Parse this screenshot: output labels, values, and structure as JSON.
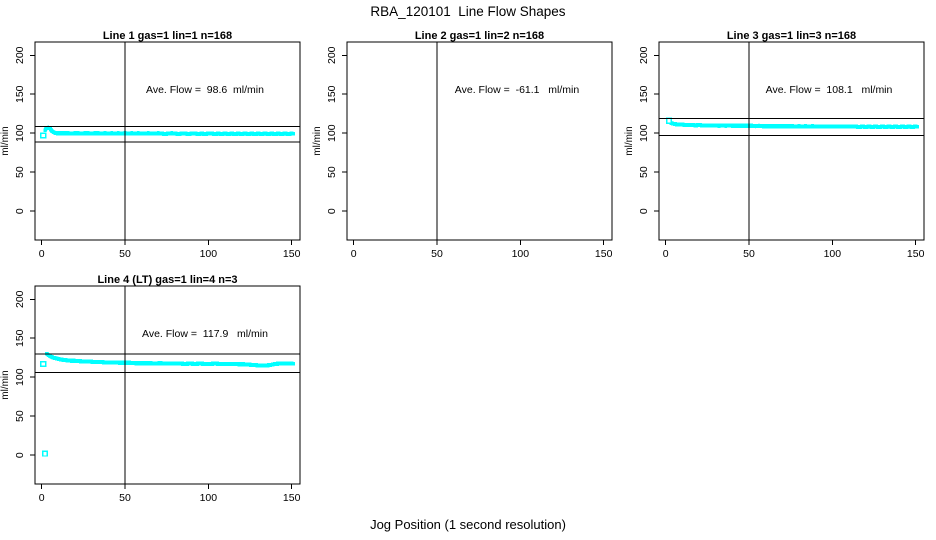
{
  "figure": {
    "title": "RBA_120101  Line Flow Shapes",
    "xlabel": "Jog Position (1 second resolution)",
    "ylabel": "ml/min",
    "colors": {
      "points": "#00FFFF",
      "axis": "#000000",
      "background": "#FFFFFF"
    }
  },
  "chart_data": {
    "type": "scatter",
    "title": "RBA_120101  Line Flow Shapes",
    "xlabel": "Jog Position (1 second resolution)",
    "ylabel": "ml/min",
    "xlim": [
      -4,
      155
    ],
    "ylim": [
      -37,
      217
    ],
    "xticks": [
      0,
      50,
      100,
      150
    ],
    "yticks": [
      0,
      50,
      100,
      150,
      200
    ],
    "grid": false,
    "vline_x": 50,
    "point_color": "#00FFFF",
    "panels": [
      {
        "id": "line-1",
        "title": "Line 1 gas=1 lin=1 n=168",
        "annotation": "Ave. Flow =  98.6  ml/min",
        "ave_flow_ml_min": 98.6,
        "n": 168,
        "hlines": [
          88.7,
          108.5
        ],
        "open_points": [
          [
            1,
            97
          ]
        ],
        "points": [
          [
            2,
            104
          ],
          [
            3,
            106.5
          ],
          [
            4,
            107
          ],
          [
            5,
            106.5
          ],
          [
            6,
            103
          ],
          [
            7,
            101.5
          ],
          [
            8,
            100.5
          ],
          [
            9,
            100
          ],
          [
            10,
            100
          ],
          [
            12,
            100
          ],
          [
            14,
            100
          ],
          [
            16,
            100
          ],
          [
            18,
            99.5
          ],
          [
            20,
            100
          ],
          [
            22,
            100
          ],
          [
            24,
            99.5
          ],
          [
            26,
            100
          ],
          [
            28,
            100
          ],
          [
            30,
            99.5
          ],
          [
            32,
            100
          ],
          [
            34,
            100
          ],
          [
            36,
            99.5
          ],
          [
            38,
            100
          ],
          [
            40,
            99.5
          ],
          [
            42,
            100
          ],
          [
            44,
            99.5
          ],
          [
            46,
            100
          ],
          [
            48,
            99.5
          ],
          [
            50,
            100
          ],
          [
            52,
            99.5
          ],
          [
            54,
            100
          ],
          [
            56,
            99.5
          ],
          [
            58,
            100
          ],
          [
            60,
            99.5
          ],
          [
            62,
            99.5
          ],
          [
            64,
            100
          ],
          [
            66,
            99.5
          ],
          [
            68,
            99.5
          ],
          [
            70,
            100
          ],
          [
            72,
            99.5
          ],
          [
            74,
            99
          ],
          [
            76,
            99.5
          ],
          [
            78,
            100
          ],
          [
            80,
            99.5
          ],
          [
            82,
            99
          ],
          [
            84,
            99.5
          ],
          [
            86,
            99.5
          ],
          [
            88,
            99
          ],
          [
            90,
            99.5
          ],
          [
            92,
            99.5
          ],
          [
            94,
            99
          ],
          [
            96,
            99.5
          ],
          [
            98,
            99
          ],
          [
            100,
            99.5
          ],
          [
            102,
            99.5
          ],
          [
            104,
            99
          ],
          [
            106,
            99.5
          ],
          [
            108,
            99
          ],
          [
            110,
            99.5
          ],
          [
            112,
            99
          ],
          [
            114,
            99.5
          ],
          [
            116,
            99
          ],
          [
            118,
            99.5
          ],
          [
            120,
            99
          ],
          [
            122,
            99.5
          ],
          [
            124,
            99
          ],
          [
            126,
            99.5
          ],
          [
            128,
            99
          ],
          [
            130,
            99.5
          ],
          [
            132,
            99
          ],
          [
            134,
            99.5
          ],
          [
            136,
            99
          ],
          [
            138,
            99.5
          ],
          [
            140,
            99
          ],
          [
            142,
            99.5
          ],
          [
            144,
            99
          ],
          [
            146,
            99.5
          ],
          [
            148,
            99
          ],
          [
            150,
            99.5
          ],
          [
            151,
            99.5
          ]
        ]
      },
      {
        "id": "line-2",
        "title": "Line 2 gas=1 lin=2 n=168",
        "annotation": "Ave. Flow =  -61.1   ml/min",
        "ave_flow_ml_min": -61.1,
        "n": 168,
        "hlines": [],
        "open_points": [],
        "points": []
      },
      {
        "id": "line-3",
        "title": "Line 3 gas=1 lin=3 n=168",
        "annotation": "Ave. Flow =  108.1   ml/min",
        "ave_flow_ml_min": 108.1,
        "n": 168,
        "hlines": [
          97.3,
          118.9
        ],
        "open_points": [
          [
            2,
            116
          ]
        ],
        "points": [
          [
            2,
            115.5
          ],
          [
            3,
            113.5
          ],
          [
            4,
            112.5
          ],
          [
            5,
            112
          ],
          [
            6,
            111.5
          ],
          [
            8,
            111
          ],
          [
            10,
            111
          ],
          [
            12,
            110.5
          ],
          [
            14,
            110.5
          ],
          [
            16,
            110.5
          ],
          [
            18,
            110
          ],
          [
            20,
            110.5
          ],
          [
            22,
            110
          ],
          [
            24,
            110
          ],
          [
            26,
            110
          ],
          [
            28,
            110
          ],
          [
            30,
            110
          ],
          [
            32,
            109.5
          ],
          [
            34,
            110
          ],
          [
            36,
            109.5
          ],
          [
            38,
            110
          ],
          [
            40,
            109.5
          ],
          [
            42,
            109.5
          ],
          [
            44,
            109.5
          ],
          [
            46,
            109.5
          ],
          [
            48,
            109.5
          ],
          [
            50,
            109.5
          ],
          [
            52,
            109.5
          ],
          [
            54,
            109
          ],
          [
            56,
            109.5
          ],
          [
            58,
            109
          ],
          [
            60,
            109
          ],
          [
            62,
            109
          ],
          [
            64,
            109
          ],
          [
            66,
            109
          ],
          [
            68,
            109
          ],
          [
            70,
            109
          ],
          [
            72,
            109
          ],
          [
            74,
            109
          ],
          [
            76,
            109
          ],
          [
            78,
            108.5
          ],
          [
            80,
            109
          ],
          [
            82,
            108.5
          ],
          [
            84,
            109
          ],
          [
            86,
            108.5
          ],
          [
            88,
            109
          ],
          [
            90,
            108.5
          ],
          [
            92,
            108.5
          ],
          [
            94,
            108.5
          ],
          [
            96,
            108.5
          ],
          [
            98,
            108.5
          ],
          [
            100,
            108.5
          ],
          [
            102,
            108.5
          ],
          [
            104,
            108.5
          ],
          [
            106,
            108.5
          ],
          [
            108,
            108.5
          ],
          [
            110,
            108.5
          ],
          [
            112,
            108.5
          ],
          [
            114,
            108.5
          ],
          [
            116,
            108
          ],
          [
            118,
            108.5
          ],
          [
            120,
            108
          ],
          [
            122,
            108.5
          ],
          [
            124,
            108
          ],
          [
            126,
            108.5
          ],
          [
            128,
            108
          ],
          [
            130,
            108.5
          ],
          [
            132,
            108
          ],
          [
            134,
            108.5
          ],
          [
            136,
            108
          ],
          [
            138,
            108.5
          ],
          [
            140,
            108
          ],
          [
            142,
            108.5
          ],
          [
            144,
            108
          ],
          [
            146,
            108.5
          ],
          [
            148,
            108
          ],
          [
            150,
            108.5
          ],
          [
            151,
            108.5
          ]
        ]
      },
      {
        "id": "line-4",
        "title": "Line 4 (LT) gas=1 lin=4 n=3",
        "annotation": "Ave. Flow =  117.9   ml/min",
        "ave_flow_ml_min": 117.9,
        "n": 3,
        "hlines": [
          106.1,
          129.7
        ],
        "open_points": [
          [
            1,
            117
          ],
          [
            2,
            2
          ]
        ],
        "points": [
          [
            3,
            130
          ],
          [
            4,
            128.5
          ],
          [
            5,
            127
          ],
          [
            6,
            126
          ],
          [
            7,
            125
          ],
          [
            8,
            124.5
          ],
          [
            9,
            124
          ],
          [
            10,
            123.5
          ],
          [
            12,
            122.5
          ],
          [
            14,
            122
          ],
          [
            16,
            121.5
          ],
          [
            18,
            121
          ],
          [
            20,
            121
          ],
          [
            23,
            120.5
          ],
          [
            26,
            120
          ],
          [
            29,
            120
          ],
          [
            32,
            119.5
          ],
          [
            35,
            119.5
          ],
          [
            38,
            119
          ],
          [
            41,
            119
          ],
          [
            44,
            119
          ],
          [
            47,
            118.5
          ],
          [
            50,
            118.5
          ],
          [
            53,
            118.5
          ],
          [
            56,
            118
          ],
          [
            59,
            118
          ],
          [
            62,
            118
          ],
          [
            65,
            118
          ],
          [
            68,
            117.5
          ],
          [
            71,
            118
          ],
          [
            74,
            117.5
          ],
          [
            77,
            117.5
          ],
          [
            80,
            117.5
          ],
          [
            83,
            117.5
          ],
          [
            86,
            117
          ],
          [
            89,
            117.5
          ],
          [
            92,
            117
          ],
          [
            95,
            117.5
          ],
          [
            98,
            117
          ],
          [
            101,
            117
          ],
          [
            104,
            117.5
          ],
          [
            107,
            117
          ],
          [
            110,
            117
          ],
          [
            113,
            117
          ],
          [
            116,
            117
          ],
          [
            119,
            116.5
          ],
          [
            122,
            116.5
          ],
          [
            125,
            116
          ],
          [
            128,
            115.5
          ],
          [
            131,
            115
          ],
          [
            134,
            115
          ],
          [
            137,
            115.5
          ],
          [
            140,
            117
          ],
          [
            143,
            117.5
          ],
          [
            146,
            117.5
          ],
          [
            149,
            117.5
          ],
          [
            151,
            117.5
          ]
        ]
      }
    ]
  }
}
